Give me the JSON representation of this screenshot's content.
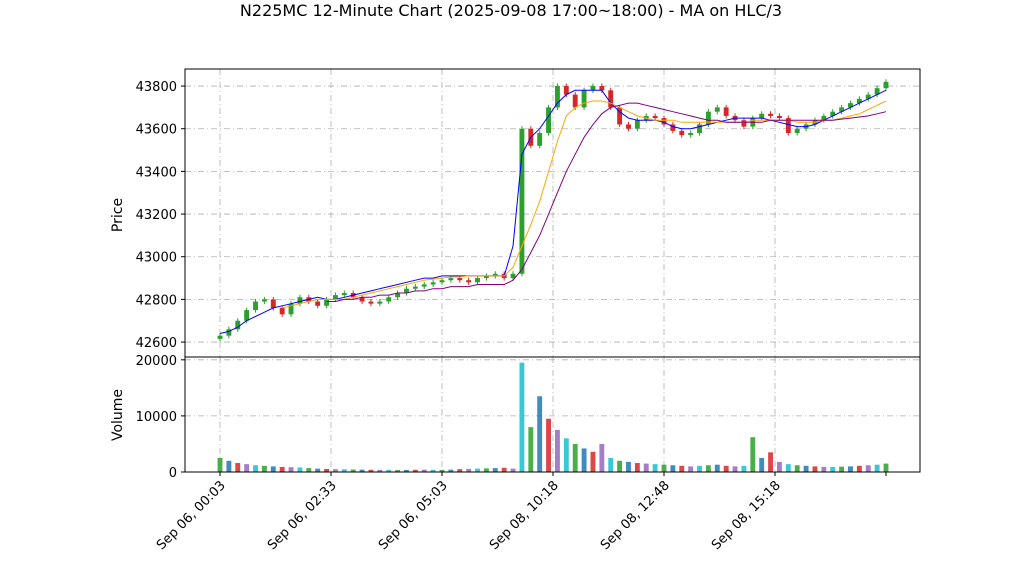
{
  "chart_data": {
    "type": "candlestick",
    "title": "N225MC 12-Minute Chart (2025-09-08 17:00~18:00) - MA on HLC/3",
    "price_panel": {
      "ylabel": "Price",
      "ylim": [
        42530,
        43880
      ],
      "yticks": [
        42600,
        42800,
        43000,
        43200,
        43400,
        43600,
        43800
      ],
      "grid": true,
      "up_color": "#2ca02c",
      "down_color": "#d62728"
    },
    "volume_panel": {
      "ylabel": "Volume",
      "ylim": [
        0,
        20500
      ],
      "yticks": [
        0,
        10000,
        20000
      ],
      "grid": true
    },
    "xtick_labels": [
      "Sep 06, 00:03",
      "Sep 06, 02:33",
      "Sep 06, 05:03",
      "Sep 08, 10:18",
      "Sep 08, 12:48",
      "Sep 08, 15:18"
    ],
    "xtick_bar_index": [
      0,
      12.5,
      25,
      37.5,
      50,
      62.5
    ],
    "n_bars": 76,
    "close": [
      42630,
      42660,
      42700,
      42750,
      42790,
      42800,
      42760,
      42730,
      42780,
      42810,
      42790,
      42770,
      42800,
      42820,
      42830,
      42810,
      42790,
      42780,
      42790,
      42810,
      42830,
      42850,
      42860,
      42870,
      42880,
      42890,
      42900,
      42890,
      42880,
      42900,
      42910,
      42920,
      42900,
      42920,
      43600,
      43520,
      43580,
      43700,
      43800,
      43760,
      43700,
      43780,
      43800,
      43780,
      43700,
      43620,
      43600,
      43640,
      43660,
      43650,
      43620,
      43590,
      43570,
      43580,
      43620,
      43680,
      43700,
      43660,
      43640,
      43610,
      43650,
      43670,
      43660,
      43650,
      43580,
      43600,
      43620,
      43640,
      43660,
      43680,
      43700,
      43720,
      43740,
      43760,
      43790,
      43820
    ],
    "volume": [
      2500,
      2000,
      1600,
      1400,
      1200,
      1100,
      1000,
      900,
      850,
      800,
      700,
      600,
      550,
      500,
      480,
      450,
      420,
      400,
      380,
      400,
      350,
      380,
      400,
      420,
      400,
      380,
      420,
      500,
      550,
      600,
      650,
      700,
      750,
      600,
      19500,
      8000,
      13500,
      9500,
      7500,
      6000,
      5000,
      4200,
      3600,
      5000,
      2500,
      2000,
      1800,
      1600,
      1500,
      1400,
      1300,
      1200,
      1100,
      1000,
      1100,
      1200,
      1300,
      1100,
      1000,
      1100,
      6200,
      2500,
      3500,
      1800,
      1400,
      1200,
      1100,
      1000,
      900,
      900,
      950,
      1000,
      1100,
      1200,
      1300,
      1500
    ],
    "moving_averages": [
      {
        "color": "#0000ff",
        "values": [
          42640,
          42650,
          42670,
          42700,
          42720,
          42740,
          42760,
          42770,
          42780,
          42790,
          42800,
          42810,
          42800,
          42800,
          42810,
          42820,
          42830,
          42840,
          42850,
          42860,
          42870,
          42880,
          42890,
          42900,
          42900,
          42910,
          42910,
          42910,
          42910,
          42910,
          42910,
          42910,
          42910,
          43050,
          43480,
          43560,
          43600,
          43660,
          43720,
          43760,
          43780,
          43780,
          43780,
          43780,
          43720,
          43680,
          43650,
          43640,
          43640,
          43640,
          43630,
          43610,
          43600,
          43600,
          43610,
          43620,
          43630,
          43640,
          43650,
          43650,
          43650,
          43650,
          43640,
          43630,
          43620,
          43610,
          43610,
          43620,
          43640,
          43660,
          43680,
          43700,
          43720,
          43740,
          43760,
          43780
        ]
      },
      {
        "color": "#ffa500",
        "values": [
          null,
          null,
          null,
          null,
          null,
          null,
          null,
          42760,
          42770,
          42780,
          42790,
          42800,
          42800,
          42800,
          42800,
          42810,
          42820,
          42830,
          42840,
          42850,
          42860,
          42870,
          42880,
          42890,
          42895,
          42900,
          42905,
          42905,
          42910,
          42910,
          42910,
          42910,
          42910,
          42950,
          43050,
          43150,
          43260,
          43400,
          43540,
          43660,
          43700,
          43720,
          43730,
          43730,
          43720,
          43700,
          43680,
          43660,
          43650,
          43640,
          43640,
          43640,
          43630,
          43630,
          43630,
          43630,
          43630,
          43630,
          43630,
          43630,
          43640,
          43640,
          43640,
          43640,
          43640,
          43630,
          43630,
          43630,
          43640,
          43640,
          43650,
          43660,
          43670,
          43690,
          43710,
          43730
        ]
      },
      {
        "color": "#800080",
        "values": [
          null,
          null,
          null,
          null,
          null,
          null,
          null,
          null,
          null,
          null,
          null,
          null,
          42790,
          42790,
          42800,
          42800,
          42810,
          42810,
          42820,
          42820,
          42830,
          42830,
          42840,
          42840,
          42850,
          42850,
          42860,
          42860,
          42860,
          42870,
          42870,
          42870,
          42870,
          42890,
          42940,
          43020,
          43100,
          43200,
          43300,
          43400,
          43480,
          43560,
          43620,
          43670,
          43700,
          43710,
          43720,
          43720,
          43710,
          43700,
          43690,
          43680,
          43670,
          43660,
          43650,
          43640,
          43640,
          43630,
          43630,
          43630,
          43630,
          43630,
          43640,
          43640,
          43640,
          43640,
          43640,
          43640,
          43640,
          43640,
          43645,
          43650,
          43655,
          43660,
          43670,
          43680
        ]
      }
    ]
  }
}
